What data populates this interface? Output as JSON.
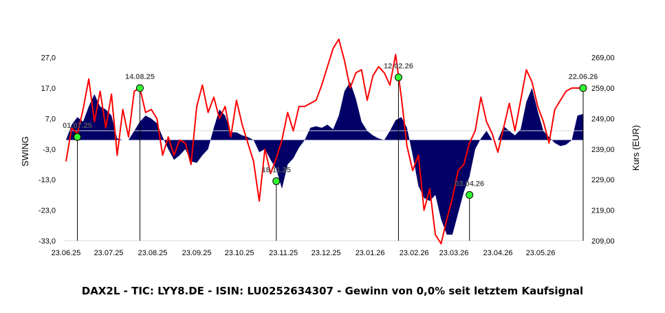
{
  "chart_data": {
    "type": "area+line",
    "title": "DAX2L - TIC: LYY8.DE - ISIN: LU0252634307 - Gewinn von 0,0% seit letztem Kaufsignal",
    "ylabel_left": "SWING",
    "ylabel_right": "Kurs (EUR)",
    "ylim_left": [
      -33,
      33
    ],
    "ylim_right": [
      209,
      275
    ],
    "yticks_left": [
      "27,0",
      "17,0",
      "7,0",
      "-3,0",
      "-13,0",
      "-23,0",
      "-33,0"
    ],
    "yticks_right": [
      "269,00",
      "259,00",
      "249,00",
      "239,00",
      "229,00",
      "219,00",
      "209,00"
    ],
    "x_ticks": [
      "23.06.25",
      "23.07.25",
      "23.08.25",
      "23.09.25",
      "23.10.25",
      "23.11.25",
      "23.12.25",
      "23.01.26",
      "23.02.26",
      "23.03.26",
      "23.04.26",
      "23.05.26"
    ],
    "colors": {
      "swing_area": "#000066",
      "kurs_line": "#ff0000",
      "signal_marker": "#33ff33",
      "signal_line": "#000000"
    },
    "swing_series": {
      "name": "SWING",
      "x": [
        "23.06.25",
        "27.06.25",
        "01.07.25",
        "05.07.25",
        "09.07.25",
        "13.07.25",
        "17.07.25",
        "21.07.25",
        "25.07.25",
        "29.07.25",
        "02.08.25",
        "06.08.25",
        "10.08.25",
        "14.08.25",
        "18.08.25",
        "22.08.25",
        "26.08.25",
        "30.08.25",
        "03.09.25",
        "07.09.25",
        "11.09.25",
        "15.09.25",
        "19.09.25",
        "23.09.25",
        "27.09.25",
        "01.10.25",
        "05.10.25",
        "09.10.25",
        "13.10.25",
        "17.10.25",
        "21.10.25",
        "25.10.25",
        "29.10.25",
        "02.11.25",
        "06.11.25",
        "10.11.25",
        "14.11.25",
        "18.11.25",
        "22.11.25",
        "26.11.25",
        "30.11.25",
        "04.12.25",
        "08.12.25",
        "12.12.25",
        "16.12.25",
        "20.12.25",
        "24.12.25",
        "28.12.25",
        "01.01.26",
        "05.01.26",
        "09.01.26",
        "13.01.26",
        "17.01.26",
        "21.01.26",
        "25.01.26",
        "29.01.26",
        "02.02.26",
        "06.02.26",
        "10.02.26",
        "14.02.26",
        "18.02.26",
        "22.02.26",
        "26.02.26",
        "02.03.26",
        "06.03.26",
        "10.03.26",
        "14.03.26",
        "18.03.26",
        "22.03.26",
        "26.03.26",
        "30.03.26",
        "03.04.26",
        "07.04.26",
        "11.04.26",
        "15.04.26",
        "19.04.26",
        "23.04.26",
        "27.04.26",
        "01.05.26",
        "05.05.26",
        "09.05.26",
        "13.05.26",
        "17.05.26",
        "21.05.26",
        "25.05.26",
        "29.05.26",
        "02.06.26",
        "06.06.26",
        "10.06.26",
        "14.06.26",
        "18.06.26",
        "22.06.26"
      ],
      "values": [
        0.0,
        5.0,
        7.5,
        6.0,
        11.0,
        15.0,
        11.0,
        10.0,
        8.0,
        0.5,
        0.0,
        0.0,
        3.0,
        6.0,
        8.0,
        7.0,
        5.5,
        1.0,
        -3.0,
        -6.5,
        -5.0,
        -3.0,
        -7.0,
        -7.5,
        -5.0,
        -3.0,
        4.0,
        10.0,
        8.0,
        2.5,
        2.5,
        1.5,
        1.0,
        0.0,
        -4.0,
        -3.0,
        -6.5,
        -9.5,
        -16.0,
        -8.0,
        -6.0,
        -2.5,
        0.0,
        4.0,
        4.5,
        4.0,
        5.0,
        3.5,
        8.0,
        16.0,
        19.0,
        13.5,
        6.0,
        3.0,
        1.5,
        0.5,
        0.0,
        3.0,
        6.5,
        7.5,
        4.0,
        -5.0,
        -15.0,
        -19.0,
        -20.0,
        -18.0,
        -26.0,
        -31.0,
        -31.0,
        -24.0,
        -17.0,
        -12.0,
        -3.0,
        0.5,
        3.0,
        0.0,
        0.0,
        4.5,
        3.0,
        1.5,
        3.5,
        12.5,
        17.0,
        9.5,
        3.0,
        1.0,
        -1.0,
        -2.0,
        -1.5,
        0.0,
        8.0,
        8.5
      ]
    },
    "kurs_series": {
      "name": "Kurs",
      "x": [
        "23.06.25",
        "27.06.25",
        "01.07.25",
        "05.07.25",
        "09.07.25",
        "13.07.25",
        "17.07.25",
        "21.07.25",
        "25.07.25",
        "29.07.25",
        "02.08.25",
        "06.08.25",
        "10.08.25",
        "14.08.25",
        "18.08.25",
        "22.08.25",
        "26.08.25",
        "30.08.25",
        "03.09.25",
        "07.09.25",
        "11.09.25",
        "15.09.25",
        "19.09.25",
        "23.09.25",
        "27.09.25",
        "01.10.25",
        "05.10.25",
        "09.10.25",
        "13.10.25",
        "17.10.25",
        "21.10.25",
        "25.10.25",
        "29.10.25",
        "02.11.25",
        "06.11.25",
        "10.11.25",
        "14.11.25",
        "18.11.25",
        "22.11.25",
        "26.11.25",
        "30.11.25",
        "04.12.25",
        "08.12.25",
        "12.12.25",
        "16.12.25",
        "20.12.25",
        "24.12.25",
        "28.12.25",
        "01.01.26",
        "05.01.26",
        "09.01.26",
        "13.01.26",
        "17.01.26",
        "21.01.26",
        "25.01.26",
        "29.01.26",
        "02.02.26",
        "06.02.26",
        "10.02.26",
        "14.02.26",
        "18.02.26",
        "22.02.26",
        "26.02.26",
        "02.03.26",
        "06.03.26",
        "10.03.26",
        "14.03.26",
        "18.03.26",
        "22.03.26",
        "26.03.26",
        "30.03.26",
        "03.04.26",
        "07.04.26",
        "11.04.26",
        "15.04.26",
        "19.04.26",
        "23.04.26",
        "27.04.26",
        "01.05.26",
        "05.05.26",
        "09.05.26",
        "13.05.26",
        "17.05.26",
        "21.05.26",
        "25.05.26",
        "29.05.26",
        "02.06.26",
        "06.06.26",
        "10.06.26",
        "14.06.26",
        "18.06.26",
        "22.06.26"
      ],
      "values": [
        235.0,
        246.0,
        244.0,
        252.0,
        262.0,
        248.0,
        258.0,
        246.0,
        257.0,
        237.0,
        252.0,
        243.0,
        258.0,
        259.0,
        251.0,
        252.0,
        249.0,
        237.0,
        243.0,
        237.0,
        242.0,
        241.0,
        234.0,
        253.0,
        260.0,
        251.0,
        256.0,
        249.0,
        253.0,
        243.0,
        255.0,
        247.0,
        241.0,
        235.0,
        222.0,
        239.0,
        231.0,
        236.0,
        242.0,
        251.0,
        245.0,
        253.0,
        253.0,
        254.0,
        255.0,
        260.0,
        266.0,
        272.0,
        275.0,
        268.0,
        259.0,
        264.0,
        265.0,
        255.0,
        263.0,
        266.0,
        264.0,
        260.0,
        270.0,
        256.0,
        240.0,
        232.0,
        237.0,
        219.0,
        226.0,
        211.0,
        208.0,
        216.0,
        223.0,
        232.0,
        234.0,
        241.0,
        245.0,
        256.0,
        248.0,
        244.0,
        238.0,
        246.0,
        254.0,
        245.0,
        255.0,
        265.0,
        261.0,
        253.0,
        248.0,
        241.0,
        252.0,
        255.0,
        258.0,
        259.0,
        259.0,
        259.0
      ]
    },
    "signals": [
      {
        "label": "01.07.25",
        "x": "01.07.25",
        "kurs": 243.0
      },
      {
        "label": "14.08.25",
        "x": "14.08.25",
        "kurs": 259.0
      },
      {
        "label": "18.11.25",
        "x": "18.11.25",
        "kurs": 228.5
      },
      {
        "label": "12.02.26",
        "x": "12.02.26",
        "kurs": 262.5
      },
      {
        "label": "03.04.26",
        "x": "03.04.26",
        "kurs": 224.0
      },
      {
        "label": "22.06.26",
        "x": "22.06.26",
        "kurs": 259.0
      }
    ],
    "grid": false,
    "legend": "none"
  }
}
